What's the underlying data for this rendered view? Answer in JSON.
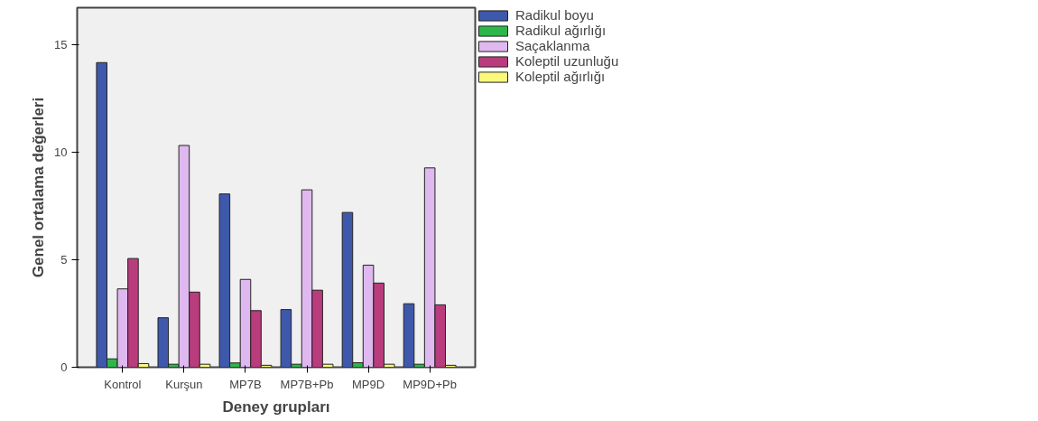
{
  "chart_data": {
    "type": "bar",
    "xlabel": "Deney grupları",
    "ylabel": "Genel ortalama değerleri",
    "categories": [
      "Kontrol",
      "Kurşun",
      "MP7B",
      "MP7B+Pb",
      "MP9D",
      "MP9D+Pb"
    ],
    "series": [
      {
        "name": "Radikul boyu",
        "color": "#3e58ac",
        "values": [
          14.15,
          2.3,
          8.05,
          2.68,
          7.19,
          2.95
        ]
      },
      {
        "name": "Radikul ağırlığı",
        "color": "#2db74a",
        "values": [
          0.39,
          0.14,
          0.2,
          0.14,
          0.21,
          0.14
        ]
      },
      {
        "name": "Saçaklanma",
        "color": "#dfb8f0",
        "values": [
          3.64,
          10.3,
          4.08,
          8.24,
          4.74,
          9.26
        ]
      },
      {
        "name": "Koleptil uzunluğu",
        "color": "#b93d7d",
        "values": [
          5.05,
          3.49,
          2.63,
          3.58,
          3.91,
          2.9
        ]
      },
      {
        "name": "Koleptil ağırlığı",
        "color": "#fbf87a",
        "values": [
          0.17,
          0.14,
          0.09,
          0.14,
          0.14,
          0.09
        ]
      }
    ],
    "ylim": [
      0,
      16.7
    ],
    "yticks": [
      0,
      5,
      10,
      15
    ],
    "grid": false,
    "legend": "top right"
  }
}
